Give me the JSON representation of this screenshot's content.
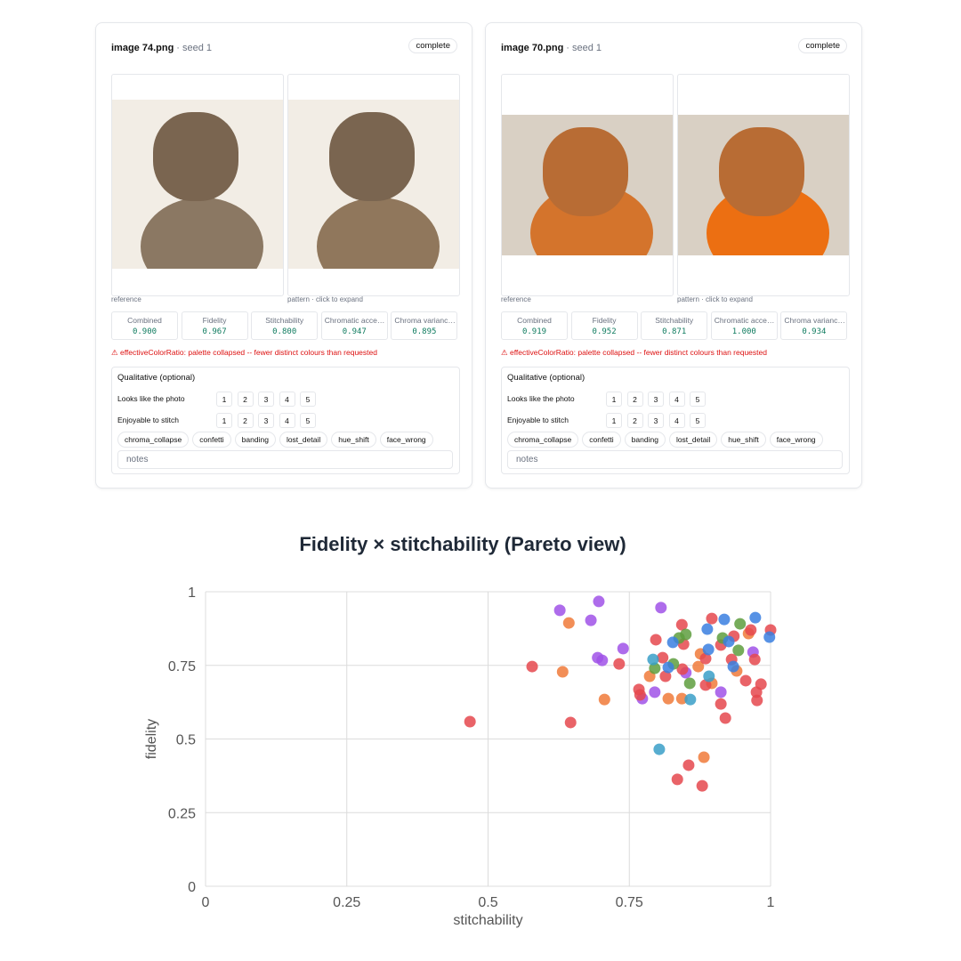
{
  "cards": [
    {
      "filename": "image 74.png",
      "seed": "· seed 1",
      "status": "complete",
      "reference_caption": "reference",
      "pattern_caption": "pattern · click to expand",
      "metrics": [
        {
          "label": "Combined",
          "value": "0.900"
        },
        {
          "label": "Fidelity",
          "value": "0.967"
        },
        {
          "label": "Stitchability",
          "value": "0.800"
        },
        {
          "label": "Chromatic acce…",
          "value": "0.947"
        },
        {
          "label": "Chroma varianc…",
          "value": "0.895"
        }
      ],
      "warning": "⚠ effectiveColorRatio: palette collapsed -- fewer distinct colours than requested",
      "qualitative": {
        "title": "Qualitative (optional)",
        "ratings": [
          {
            "label": "Looks like the photo",
            "options": [
              1,
              2,
              3,
              4,
              5
            ]
          },
          {
            "label": "Enjoyable to stitch",
            "options": [
              1,
              2,
              3,
              4,
              5
            ]
          }
        ],
        "tags": [
          "chroma_collapse",
          "confetti",
          "banding",
          "lost_detail",
          "hue_shift",
          "face_wrong"
        ],
        "notes_placeholder": "notes"
      }
    },
    {
      "filename": "image 70.png",
      "seed": "· seed 1",
      "status": "complete",
      "reference_caption": "reference",
      "pattern_caption": "pattern · click to expand",
      "metrics": [
        {
          "label": "Combined",
          "value": "0.919"
        },
        {
          "label": "Fidelity",
          "value": "0.952"
        },
        {
          "label": "Stitchability",
          "value": "0.871"
        },
        {
          "label": "Chromatic acce…",
          "value": "1.000"
        },
        {
          "label": "Chroma varianc…",
          "value": "0.934"
        }
      ],
      "warning": "⚠ effectiveColorRatio: palette collapsed -- fewer distinct colours than requested",
      "qualitative": {
        "title": "Qualitative (optional)",
        "ratings": [
          {
            "label": "Looks like the photo",
            "options": [
              1,
              2,
              3,
              4,
              5
            ]
          },
          {
            "label": "Enjoyable to stitch",
            "options": [
              1,
              2,
              3,
              4,
              5
            ]
          }
        ],
        "tags": [
          "chroma_collapse",
          "confetti",
          "banding",
          "lost_detail",
          "hue_shift",
          "face_wrong"
        ],
        "notes_placeholder": "notes"
      }
    }
  ],
  "chart_data": {
    "type": "scatter",
    "title": "Fidelity × stitchability (Pareto view)",
    "x_label": "stitchability",
    "y_label": "fidelity",
    "xlim": [
      0,
      1
    ],
    "ylim": [
      0,
      1
    ],
    "xticks": [
      0,
      0.25,
      0.5,
      0.75,
      1
    ],
    "yticks": [
      0,
      0.25,
      0.5,
      0.75,
      1
    ],
    "grid": true,
    "series": [
      {
        "color": "#a052e8",
        "x": [
          0.627,
          0.696,
          0.682,
          0.806,
          0.694,
          0.702,
          0.739,
          0.795,
          0.773,
          0.912,
          0.85,
          0.969
        ],
        "values": [
          0.937,
          0.967,
          0.903,
          0.946,
          0.776,
          0.767,
          0.807,
          0.659,
          0.637,
          0.659,
          0.725,
          0.795
        ]
      },
      {
        "color": "#f07a3a",
        "x": [
          0.643,
          0.632,
          0.706,
          0.819,
          0.882,
          0.872,
          0.786,
          0.843,
          0.94,
          0.896,
          0.876,
          0.961
        ],
        "values": [
          0.894,
          0.728,
          0.634,
          0.637,
          0.438,
          0.746,
          0.713,
          0.637,
          0.731,
          0.689,
          0.789,
          0.858
        ]
      },
      {
        "color": "#e5484d",
        "x": [
          0.468,
          0.578,
          0.646,
          0.732,
          0.767,
          0.769,
          0.797,
          0.809,
          0.843,
          0.846,
          0.855,
          0.835,
          0.879,
          0.912,
          0.92,
          0.956,
          0.975,
          0.976,
          0.983,
          0.896,
          0.935,
          0.965,
          1.0,
          0.912,
          0.885,
          0.844,
          0.931,
          0.972,
          0.885,
          0.814
        ],
        "values": [
          0.559,
          0.746,
          0.556,
          0.755,
          0.668,
          0.65,
          0.837,
          0.776,
          0.888,
          0.822,
          0.411,
          0.363,
          0.341,
          0.619,
          0.571,
          0.698,
          0.659,
          0.631,
          0.686,
          0.909,
          0.849,
          0.87,
          0.87,
          0.819,
          0.773,
          0.737,
          0.77,
          0.77,
          0.683,
          0.713
        ]
      },
      {
        "color": "#5e9e3e",
        "x": [
          0.85,
          0.946,
          0.838,
          0.795,
          0.857,
          0.943,
          0.915,
          0.828
        ],
        "values": [
          0.855,
          0.891,
          0.843,
          0.74,
          0.689,
          0.801,
          0.843,
          0.755
        ]
      },
      {
        "color": "#3a7fe0",
        "x": [
          0.918,
          0.973,
          0.998,
          0.827,
          0.89,
          0.934,
          0.926,
          0.819,
          0.888
        ],
        "values": [
          0.906,
          0.912,
          0.846,
          0.828,
          0.804,
          0.746,
          0.831,
          0.743,
          0.873
        ]
      },
      {
        "color": "#3a9fc8",
        "x": [
          0.803,
          0.858,
          0.792,
          0.891
        ],
        "values": [
          0.465,
          0.634,
          0.77,
          0.713
        ]
      }
    ]
  }
}
